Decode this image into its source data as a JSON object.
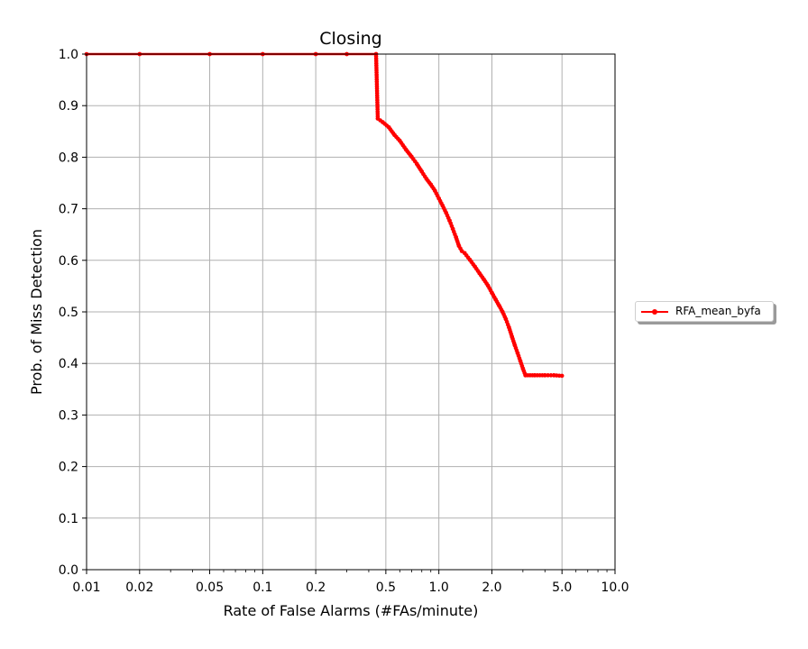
{
  "chart_data": {
    "type": "line",
    "title": "Closing",
    "xlabel": "Rate of False Alarms (#FAs/minute)",
    "ylabel": "Prob. of Miss Detection",
    "xscale": "log",
    "xlim": [
      0.01,
      10.0
    ],
    "ylim": [
      0.0,
      1.0
    ],
    "x_ticks": [
      0.01,
      0.02,
      0.05,
      0.1,
      0.2,
      0.5,
      1.0,
      2.0,
      5.0,
      10.0
    ],
    "x_tick_labels": [
      "0.01",
      "0.02",
      "0.05",
      "0.1",
      "0.2",
      "0.5",
      "1.0",
      "2.0",
      "5.0",
      "10.0"
    ],
    "y_ticks": [
      0.0,
      0.1,
      0.2,
      0.3,
      0.4,
      0.5,
      0.6,
      0.7,
      0.8,
      0.9,
      1.0
    ],
    "y_tick_labels": [
      "0.0",
      "0.1",
      "0.2",
      "0.3",
      "0.4",
      "0.5",
      "0.6",
      "0.7",
      "0.8",
      "0.9",
      "1.0"
    ],
    "grid": true,
    "legend_position": "right-outside",
    "series": [
      {
        "name": "RFA_mean_byfa",
        "color": "#ff0000",
        "marker": "dot",
        "points": [
          [
            0.01,
            1.0
          ],
          [
            0.02,
            1.0
          ],
          [
            0.05,
            1.0
          ],
          [
            0.1,
            1.0
          ],
          [
            0.2,
            1.0
          ],
          [
            0.3,
            1.0
          ],
          [
            0.44,
            1.0
          ],
          [
            0.45,
            0.875
          ],
          [
            0.48,
            0.868
          ],
          [
            0.52,
            0.858
          ],
          [
            0.56,
            0.843
          ],
          [
            0.6,
            0.832
          ],
          [
            0.65,
            0.815
          ],
          [
            0.7,
            0.801
          ],
          [
            0.75,
            0.787
          ],
          [
            0.8,
            0.772
          ],
          [
            0.85,
            0.758
          ],
          [
            0.9,
            0.747
          ],
          [
            0.95,
            0.735
          ],
          [
            1.0,
            0.72
          ],
          [
            1.05,
            0.706
          ],
          [
            1.1,
            0.692
          ],
          [
            1.15,
            0.677
          ],
          [
            1.2,
            0.661
          ],
          [
            1.25,
            0.645
          ],
          [
            1.3,
            0.628
          ],
          [
            1.35,
            0.618
          ],
          [
            1.4,
            0.614
          ],
          [
            1.5,
            0.601
          ],
          [
            1.6,
            0.588
          ],
          [
            1.7,
            0.575
          ],
          [
            1.8,
            0.563
          ],
          [
            1.9,
            0.551
          ],
          [
            2.0,
            0.537
          ],
          [
            2.1,
            0.524
          ],
          [
            2.2,
            0.512
          ],
          [
            2.3,
            0.5
          ],
          [
            2.4,
            0.486
          ],
          [
            2.5,
            0.47
          ],
          [
            2.6,
            0.452
          ],
          [
            2.7,
            0.435
          ],
          [
            2.8,
            0.42
          ],
          [
            2.9,
            0.405
          ],
          [
            3.0,
            0.39
          ],
          [
            3.1,
            0.377
          ],
          [
            3.5,
            0.377
          ],
          [
            4.0,
            0.377
          ],
          [
            4.5,
            0.377
          ],
          [
            5.0,
            0.376
          ]
        ]
      }
    ]
  },
  "legend": {
    "label": "RFA_mean_byfa"
  }
}
